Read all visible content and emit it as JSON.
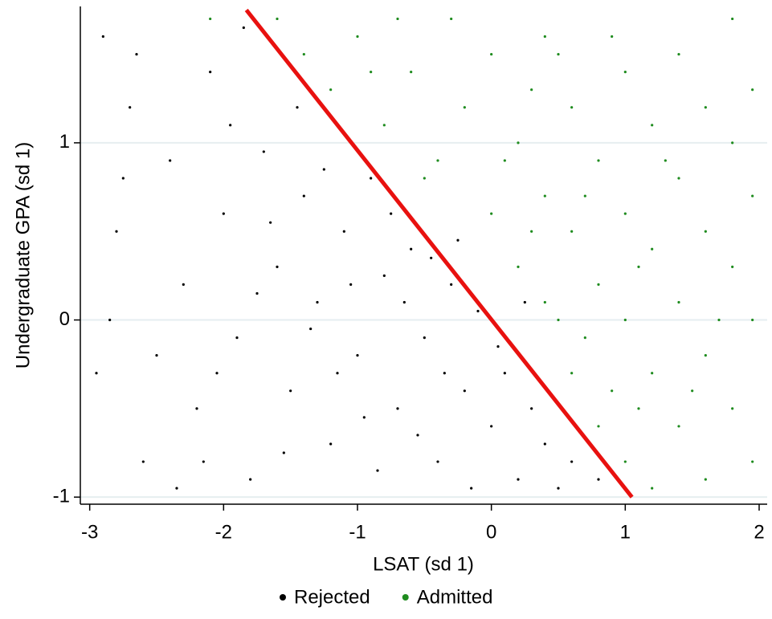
{
  "chart_data": {
    "type": "scatter",
    "x_label": "LSAT (sd 1)",
    "y_label": "Undergraduate GPA (sd 1)",
    "xlim": [
      -3.07,
      2.06
    ],
    "ylim": [
      -1.04,
      1.77
    ],
    "xticks": [
      -3,
      -2,
      -1,
      0,
      1,
      2
    ],
    "yticks": [
      -1,
      0,
      1
    ],
    "grid": true,
    "legend": "bottom",
    "series": [
      {
        "name": "Rejected",
        "color": "#000000",
        "x": [
          -2.9,
          -2.7,
          -2.8,
          -2.95,
          -2.6,
          -2.4,
          -2.3,
          -2.2,
          -2.1,
          -2.0,
          -1.9,
          -1.8,
          -1.7,
          -1.6,
          -1.5,
          -1.4,
          -1.3,
          -1.2,
          -1.1,
          -1.0,
          -0.9,
          -0.8,
          -0.7,
          -0.6,
          -0.5,
          -0.4,
          -0.3,
          -0.2,
          -0.1,
          0.0,
          0.1,
          0.2,
          0.3,
          0.4,
          0.5,
          0.6,
          0.8,
          -2.5,
          -1.75,
          -1.25,
          -0.85,
          -0.45,
          -2.85,
          -1.95,
          -1.55,
          -1.05,
          -0.65,
          -0.15,
          -2.65,
          -2.35,
          -1.45,
          -1.15,
          -0.75,
          -0.35,
          0.05,
          -2.05,
          -1.65,
          -0.95,
          -0.55,
          -1.35,
          -2.75,
          -1.85,
          -2.15,
          0.25,
          -0.25
        ],
        "values": [
          1.6,
          1.2,
          0.5,
          -0.3,
          -0.8,
          0.9,
          0.2,
          -0.5,
          1.4,
          0.6,
          -0.1,
          -0.9,
          0.95,
          0.3,
          -0.4,
          0.7,
          0.1,
          -0.7,
          0.5,
          -0.2,
          0.8,
          0.25,
          -0.5,
          0.4,
          -0.1,
          -0.8,
          0.2,
          -0.4,
          0.05,
          -0.6,
          -0.3,
          -0.9,
          -0.5,
          -0.7,
          -0.95,
          -0.8,
          -0.9,
          -0.2,
          0.15,
          0.85,
          -0.85,
          0.35,
          0.0,
          1.1,
          -0.75,
          0.2,
          0.1,
          -0.95,
          1.5,
          -0.95,
          1.2,
          -0.3,
          0.6,
          -0.3,
          -0.15,
          -0.3,
          0.55,
          -0.55,
          -0.65,
          -0.05,
          0.8,
          1.65,
          -0.8,
          0.1,
          0.45
        ]
      },
      {
        "name": "Admitted",
        "color": "#1f8c1f",
        "x": [
          -1.6,
          -1.4,
          -1.2,
          -1.0,
          -0.8,
          -0.6,
          -0.4,
          -0.2,
          0.0,
          0.0,
          0.2,
          0.2,
          0.4,
          0.4,
          0.4,
          0.6,
          0.6,
          0.6,
          0.8,
          0.8,
          0.8,
          1.0,
          1.0,
          1.0,
          1.0,
          1.2,
          1.2,
          1.2,
          1.2,
          1.4,
          1.4,
          1.4,
          1.4,
          1.6,
          1.6,
          1.6,
          1.6,
          1.8,
          1.8,
          1.8,
          1.8,
          1.95,
          1.95,
          1.95,
          1.95,
          -2.1,
          -0.3,
          0.3,
          0.5,
          0.7,
          0.9,
          0.1,
          -0.5,
          -0.9,
          0.3,
          0.7,
          1.1,
          1.5,
          1.3,
          0.5,
          -0.7,
          1.7,
          1.1,
          0.9
        ],
        "values": [
          1.7,
          1.5,
          1.3,
          1.6,
          1.1,
          1.4,
          0.9,
          1.2,
          0.6,
          1.5,
          0.3,
          1.0,
          0.1,
          0.7,
          1.6,
          -0.3,
          0.5,
          1.2,
          -0.6,
          0.2,
          0.9,
          -0.8,
          0.0,
          0.6,
          1.4,
          -0.95,
          -0.3,
          0.4,
          1.1,
          -0.6,
          0.1,
          0.8,
          1.5,
          -0.9,
          -0.2,
          0.5,
          1.2,
          -0.5,
          0.3,
          1.0,
          1.7,
          -0.8,
          0.0,
          0.7,
          1.3,
          1.7,
          1.7,
          0.5,
          0.0,
          -0.1,
          -0.4,
          0.9,
          0.8,
          1.4,
          1.3,
          0.7,
          0.3,
          -0.4,
          0.9,
          1.5,
          1.7,
          0.0,
          -0.5,
          1.6
        ]
      }
    ],
    "fit_line": {
      "color": "#e8110f",
      "x": [
        -1.83,
        1.05
      ],
      "values": [
        1.75,
        -1.0
      ]
    }
  }
}
